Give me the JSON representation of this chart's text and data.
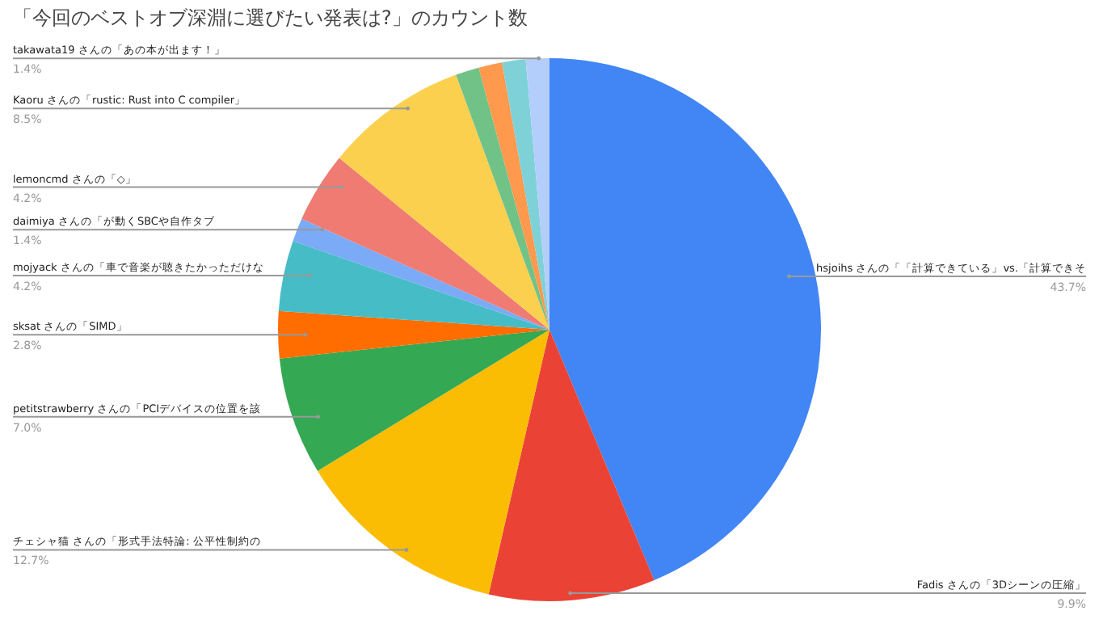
{
  "chart_data": {
    "type": "pie",
    "title": "「今回のベストオブ深淵に選びたい発表は?」のカウント数",
    "categories": [
      "hsjoihs さんの「「計算できている」vs.「計算できそ",
      "Fadis さんの「3Dシーンの圧縮」",
      "チェシャ猫 さんの「形式手法特論: 公平性制約の",
      "petitstrawberry さんの「PCIデバイスの位置を該",
      "sksat さんの「SIMD」",
      "mojyack さんの「車で音楽が聴きたかっただけな",
      "daimiya さんの「が動くSBCや自作タブ",
      "lemoncmd さんの「◇」",
      "Kaoru さんの「rustic: Rust into C compiler」",
      null,
      null,
      null,
      "takawata19 さんの「あの本が出ます！」"
    ],
    "values": [
      43.7,
      9.9,
      12.7,
      7.0,
      2.8,
      4.2,
      1.4,
      4.2,
      8.5,
      1.4,
      1.4,
      1.4,
      1.4
    ],
    "value_labels": [
      "43.7%",
      "9.9%",
      "12.7%",
      "7.0%",
      "2.8%",
      "4.2%",
      "1.4%",
      "4.2%",
      "8.5%",
      null,
      null,
      null,
      "1.4%"
    ],
    "colors": [
      "#4285f4",
      "#ea4335",
      "#fbbc04",
      "#34a853",
      "#ff6d01",
      "#46bdc6",
      "#7baaf7",
      "#f07b72",
      "#fcd04f",
      "#71c287",
      "#ff994d",
      "#7ed1d7",
      "#b3cefb"
    ],
    "legend": false
  }
}
